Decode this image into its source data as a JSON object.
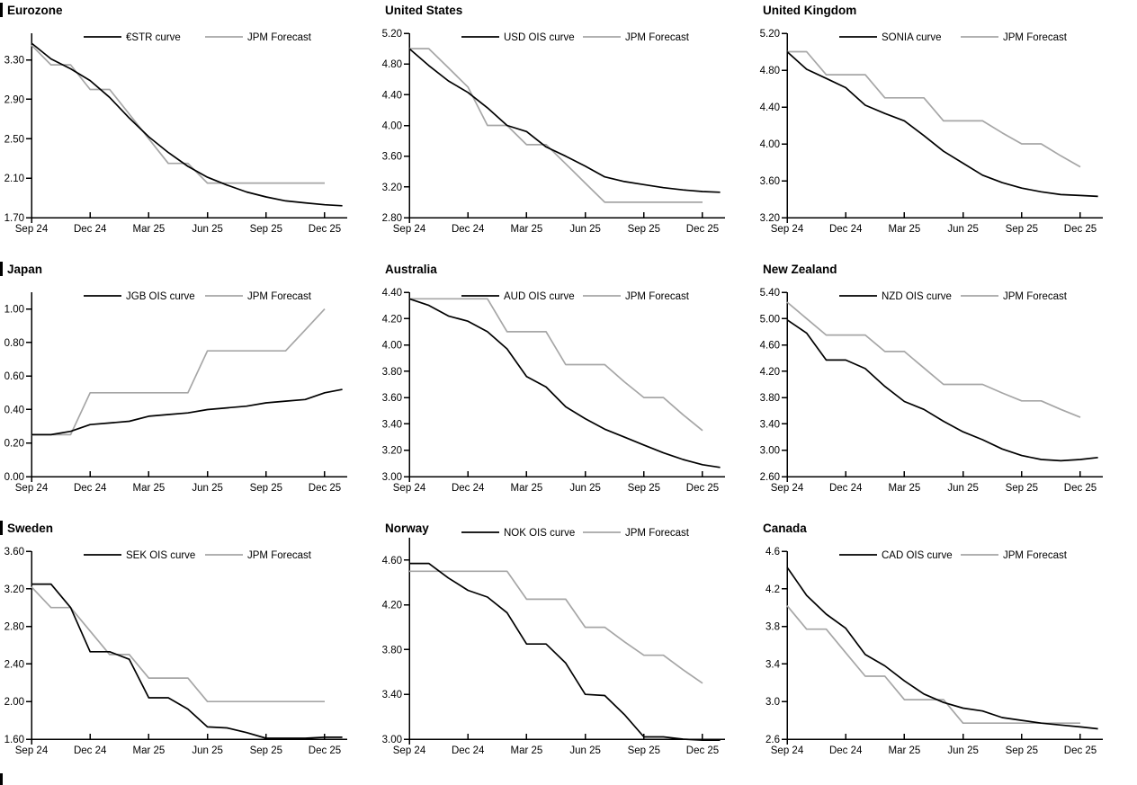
{
  "page_background": "#ffffff",
  "colors": {
    "black": "#000000",
    "gray": "#a6a6a6"
  },
  "x_axis": {
    "ticks": [
      {
        "label": "Sep 24",
        "month": 0
      },
      {
        "label": "Dec 24",
        "month": 3
      },
      {
        "label": "Mar 25",
        "month": 6
      },
      {
        "label": "Jun 25",
        "month": 9
      },
      {
        "label": "Sep 25",
        "month": 12
      },
      {
        "label": "Dec 25",
        "month": 15
      }
    ]
  },
  "chart_data": [
    {
      "type": "line",
      "region": "Eurozone",
      "section_bar": true,
      "ylim": [
        1.7,
        3.57
      ],
      "y_ticks": [
        {
          "label": "3.30",
          "value": 3.3
        },
        {
          "label": "2.90",
          "value": 2.9
        },
        {
          "label": "2.50",
          "value": 2.5
        },
        {
          "label": "2.10",
          "value": 2.1
        },
        {
          "label": "1.70",
          "value": 1.7
        }
      ],
      "series": [
        {
          "name": "€STR curve",
          "color": "black",
          "monthly_values": [
            3.47,
            3.31,
            3.21,
            3.09,
            2.92,
            2.71,
            2.52,
            2.36,
            2.22,
            2.11,
            2.03,
            1.96,
            1.91,
            1.87,
            1.85,
            1.83
          ],
          "end_extension": 1.82
        },
        {
          "name": "JPM Forecast",
          "color": "gray",
          "monthly_values": [
            3.45,
            3.25,
            3.25,
            3.0,
            3.0,
            2.75,
            2.5,
            2.25,
            2.25,
            2.05,
            2.05,
            2.05,
            2.05,
            2.05,
            2.05,
            2.05
          ]
        }
      ]
    },
    {
      "type": "line",
      "region": "United States",
      "section_bar": false,
      "ylim": [
        2.8,
        5.2
      ],
      "y_ticks": [
        {
          "label": "5.20",
          "value": 5.2
        },
        {
          "label": "4.80",
          "value": 4.8
        },
        {
          "label": "4.40",
          "value": 4.4
        },
        {
          "label": "4.00",
          "value": 4.0
        },
        {
          "label": "3.60",
          "value": 3.6
        },
        {
          "label": "3.20",
          "value": 3.2
        },
        {
          "label": "2.80",
          "value": 2.8
        }
      ],
      "series": [
        {
          "name": "USD OIS curve",
          "color": "black",
          "monthly_values": [
            5.0,
            4.78,
            4.58,
            4.43,
            4.23,
            4.0,
            3.92,
            3.72,
            3.6,
            3.47,
            3.33,
            3.27,
            3.23,
            3.19,
            3.16,
            3.14
          ],
          "end_extension": 3.13
        },
        {
          "name": "JPM Forecast",
          "color": "gray",
          "monthly_values": [
            5.0,
            5.0,
            4.75,
            4.5,
            4.0,
            4.0,
            3.75,
            3.75,
            3.5,
            3.25,
            3.0,
            3.0,
            3.0,
            3.0,
            3.0,
            3.0
          ]
        }
      ]
    },
    {
      "type": "line",
      "region": "United Kingdom",
      "section_bar": false,
      "ylim": [
        3.2,
        5.2
      ],
      "y_ticks": [
        {
          "label": "5.20",
          "value": 5.2
        },
        {
          "label": "4.80",
          "value": 4.8
        },
        {
          "label": "4.40",
          "value": 4.4
        },
        {
          "label": "4.00",
          "value": 4.0
        },
        {
          "label": "3.60",
          "value": 3.6
        },
        {
          "label": "3.20",
          "value": 3.2
        }
      ],
      "series": [
        {
          "name": "SONIA curve",
          "color": "black",
          "monthly_values": [
            5.0,
            4.81,
            4.71,
            4.61,
            4.42,
            4.33,
            4.25,
            4.09,
            3.92,
            3.79,
            3.66,
            3.58,
            3.52,
            3.48,
            3.45,
            3.44
          ],
          "end_extension": 3.43
        },
        {
          "name": "JPM Forecast",
          "color": "gray",
          "monthly_values": [
            5.0,
            5.0,
            4.75,
            4.75,
            4.75,
            4.5,
            4.5,
            4.5,
            4.25,
            4.25,
            4.25,
            4.12,
            4.0,
            4.0,
            3.87,
            3.75
          ]
        }
      ]
    },
    {
      "type": "line",
      "region": "Japan",
      "section_bar": true,
      "ylim": [
        0.0,
        1.1
      ],
      "y_ticks": [
        {
          "label": "1.00",
          "value": 1.0
        },
        {
          "label": "0.80",
          "value": 0.8
        },
        {
          "label": "0.60",
          "value": 0.6
        },
        {
          "label": "0.40",
          "value": 0.4
        },
        {
          "label": "0.20",
          "value": 0.2
        },
        {
          "label": "0.00",
          "value": 0.0
        }
      ],
      "series": [
        {
          "name": "JGB OIS curve",
          "color": "black",
          "monthly_values": [
            0.25,
            0.25,
            0.27,
            0.31,
            0.32,
            0.33,
            0.36,
            0.37,
            0.38,
            0.4,
            0.41,
            0.42,
            0.44,
            0.45,
            0.46,
            0.5
          ],
          "end_extension": 0.52
        },
        {
          "name": "JPM Forecast",
          "color": "gray",
          "monthly_values": [
            0.25,
            0.25,
            0.25,
            0.5,
            0.5,
            0.5,
            0.5,
            0.5,
            0.5,
            0.75,
            0.75,
            0.75,
            0.75,
            0.75,
            0.875,
            1.0
          ]
        }
      ]
    },
    {
      "type": "line",
      "region": "Australia",
      "section_bar": false,
      "ylim": [
        3.0,
        4.4
      ],
      "y_ticks": [
        {
          "label": "4.40",
          "value": 4.4
        },
        {
          "label": "4.20",
          "value": 4.2
        },
        {
          "label": "4.00",
          "value": 4.0
        },
        {
          "label": "3.80",
          "value": 3.8
        },
        {
          "label": "3.60",
          "value": 3.6
        },
        {
          "label": "3.40",
          "value": 3.4
        },
        {
          "label": "3.20",
          "value": 3.2
        },
        {
          "label": "3.00",
          "value": 3.0
        }
      ],
      "series": [
        {
          "name": "AUD OIS curve",
          "color": "black",
          "monthly_values": [
            4.35,
            4.3,
            4.22,
            4.18,
            4.1,
            3.97,
            3.76,
            3.68,
            3.53,
            3.44,
            3.36,
            3.3,
            3.24,
            3.18,
            3.13,
            3.09
          ],
          "end_extension": 3.07
        },
        {
          "name": "JPM Forecast",
          "color": "gray",
          "monthly_values": [
            4.35,
            4.35,
            4.35,
            4.35,
            4.35,
            4.1,
            4.1,
            4.1,
            3.85,
            3.85,
            3.85,
            3.72,
            3.6,
            3.6,
            3.47,
            3.35
          ]
        }
      ]
    },
    {
      "type": "line",
      "region": "New Zealand",
      "section_bar": false,
      "ylim": [
        2.6,
        5.4
      ],
      "y_ticks": [
        {
          "label": "5.40",
          "value": 5.4
        },
        {
          "label": "5.00",
          "value": 5.0
        },
        {
          "label": "4.60",
          "value": 4.6
        },
        {
          "label": "4.20",
          "value": 4.2
        },
        {
          "label": "3.80",
          "value": 3.8
        },
        {
          "label": "3.40",
          "value": 3.4
        },
        {
          "label": "3.00",
          "value": 3.0
        },
        {
          "label": "2.60",
          "value": 2.6
        }
      ],
      "series": [
        {
          "name": "NZD OIS curve",
          "color": "black",
          "monthly_values": [
            4.98,
            4.78,
            4.37,
            4.37,
            4.24,
            3.97,
            3.74,
            3.62,
            3.44,
            3.28,
            3.16,
            3.02,
            2.92,
            2.86,
            2.84,
            2.86
          ],
          "end_extension": 2.89
        },
        {
          "name": "JPM Forecast",
          "color": "gray",
          "monthly_values": [
            5.25,
            5.0,
            4.75,
            4.75,
            4.75,
            4.5,
            4.5,
            4.25,
            4.0,
            4.0,
            4.0,
            3.87,
            3.75,
            3.75,
            3.62,
            3.5
          ]
        }
      ]
    },
    {
      "type": "line",
      "region": "Sweden",
      "section_bar": true,
      "ylim": [
        1.6,
        3.6
      ],
      "y_ticks": [
        {
          "label": "3.60",
          "value": 3.6
        },
        {
          "label": "3.20",
          "value": 3.2
        },
        {
          "label": "2.80",
          "value": 2.8
        },
        {
          "label": "2.40",
          "value": 2.4
        },
        {
          "label": "2.00",
          "value": 2.0
        },
        {
          "label": "1.60",
          "value": 1.6
        }
      ],
      "series": [
        {
          "name": "SEK OIS curve",
          "color": "black",
          "monthly_values": [
            3.25,
            3.25,
            3.0,
            2.53,
            2.53,
            2.45,
            2.04,
            2.04,
            1.92,
            1.73,
            1.72,
            1.67,
            1.61,
            1.61,
            1.61,
            1.62
          ],
          "end_extension": 1.62
        },
        {
          "name": "JPM Forecast",
          "color": "gray",
          "monthly_values": [
            3.22,
            3.0,
            3.0,
            2.75,
            2.5,
            2.5,
            2.25,
            2.25,
            2.25,
            2.0,
            2.0,
            2.0,
            2.0,
            2.0,
            2.0,
            2.0
          ]
        }
      ]
    },
    {
      "type": "line",
      "region": "Norway",
      "section_bar": false,
      "ylim": [
        3.0,
        4.8
      ],
      "y_ticks": [
        {
          "label": "4.60",
          "value": 4.6
        },
        {
          "label": "4.20",
          "value": 4.2
        },
        {
          "label": "3.80",
          "value": 3.8
        },
        {
          "label": "3.40",
          "value": 3.4
        },
        {
          "label": "3.00",
          "value": 3.0
        }
      ],
      "series": [
        {
          "name": "NOK OIS curve",
          "color": "black",
          "monthly_values": [
            4.57,
            4.57,
            4.44,
            4.33,
            4.27,
            4.13,
            3.85,
            3.85,
            3.68,
            3.4,
            3.39,
            3.22,
            3.02,
            3.02,
            3.0,
            2.99
          ],
          "end_extension": 2.99
        },
        {
          "name": "JPM Forecast",
          "color": "gray",
          "monthly_values": [
            4.5,
            4.5,
            4.5,
            4.5,
            4.5,
            4.5,
            4.25,
            4.25,
            4.25,
            4.0,
            4.0,
            3.87,
            3.75,
            3.75,
            3.62,
            3.5
          ]
        }
      ]
    },
    {
      "type": "line",
      "region": "Canada",
      "section_bar": false,
      "ylim": [
        2.6,
        4.6
      ],
      "y_ticks": [
        {
          "label": "4.6",
          "value": 4.6
        },
        {
          "label": "4.2",
          "value": 4.2
        },
        {
          "label": "3.8",
          "value": 3.8
        },
        {
          "label": "3.4",
          "value": 3.4
        },
        {
          "label": "3.0",
          "value": 3.0
        },
        {
          "label": "2.6",
          "value": 2.6
        }
      ],
      "series": [
        {
          "name": "CAD OIS curve",
          "color": "black",
          "monthly_values": [
            4.43,
            4.13,
            3.93,
            3.78,
            3.5,
            3.38,
            3.22,
            3.08,
            2.99,
            2.93,
            2.9,
            2.83,
            2.8,
            2.77,
            2.75,
            2.73
          ],
          "end_extension": 2.71
        },
        {
          "name": "JPM Forecast",
          "color": "gray",
          "monthly_values": [
            4.02,
            3.77,
            3.77,
            3.52,
            3.27,
            3.27,
            3.02,
            3.02,
            3.02,
            2.77,
            2.77,
            2.77,
            2.77,
            2.77,
            2.77,
            2.77
          ]
        }
      ]
    }
  ]
}
